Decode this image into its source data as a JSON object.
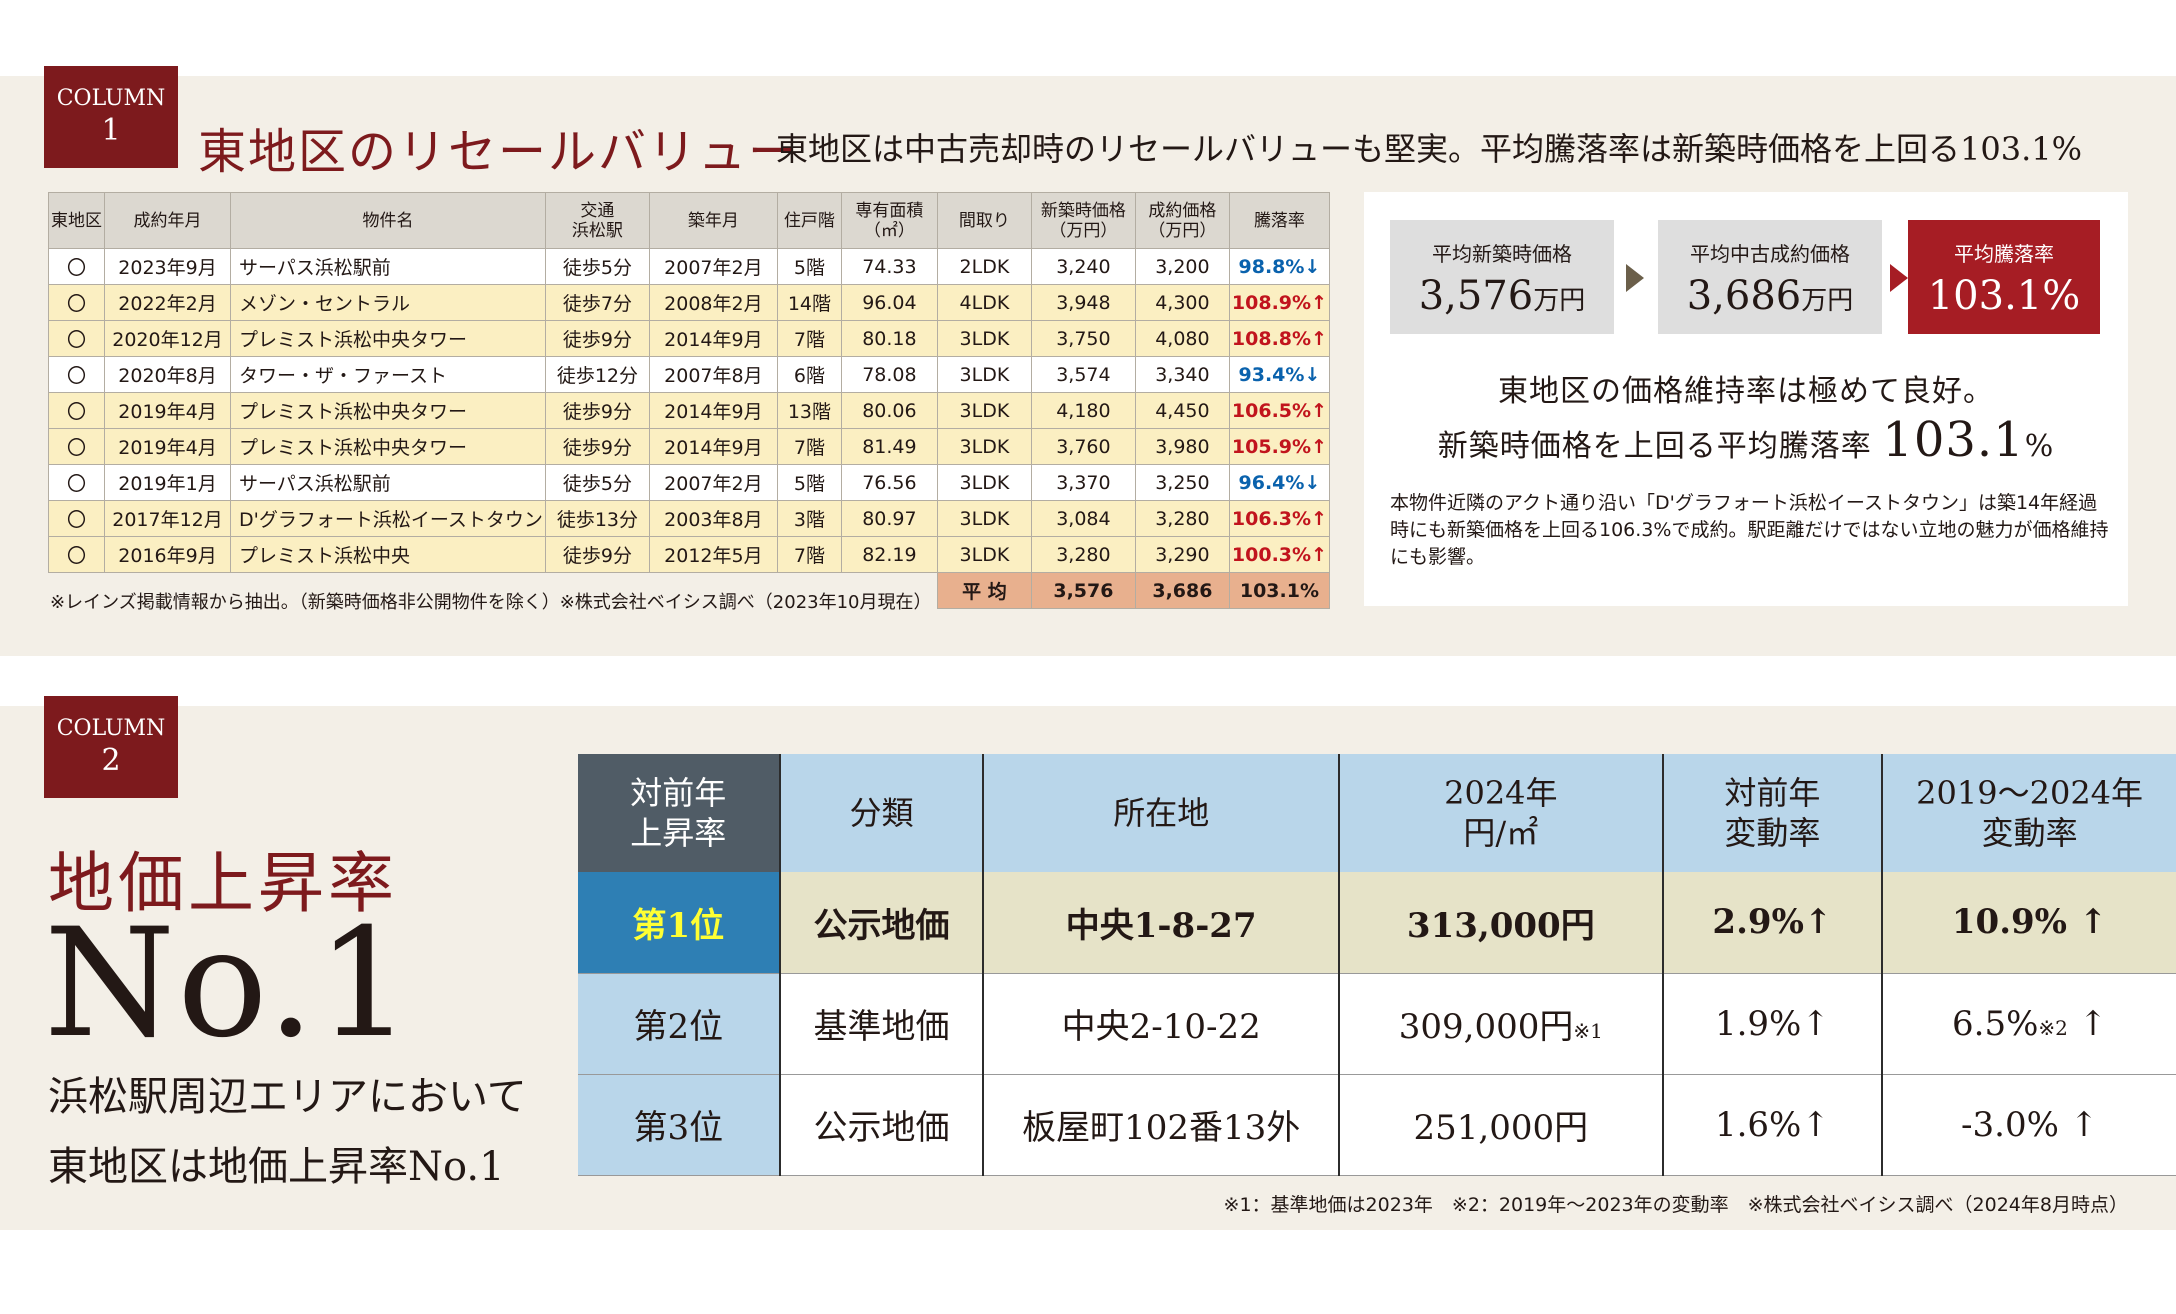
{
  "column1": {
    "badge_word": "COLUMN",
    "badge_num": "1",
    "title": "東地区のリセールバリュー",
    "subtitle": "東地区は中古売却時のリセールバリューも堅実。平均騰落率は新築時価格を上回る103.1%",
    "table": {
      "headers": [
        "東地区",
        "成約年月",
        "物件名",
        "交通\n浜松駅",
        "築年月",
        "住戸階",
        "専有面積\n（㎡）",
        "間取り",
        "新築時価格\n（万円）",
        "成約価格\n（万円）",
        "騰落率"
      ],
      "rows": [
        {
          "mark": "〇",
          "date": "2023年9月",
          "name": "サーパス浜松駅前",
          "walk": "徒歩5分",
          "built": "2007年2月",
          "floor": "5階",
          "area": "74.33",
          "layout": "2LDK",
          "new_price": "3,240",
          "sold_price": "3,200",
          "rate": "98.8%↓",
          "dir": "down"
        },
        {
          "mark": "〇",
          "date": "2022年2月",
          "name": "メゾン・セントラル",
          "walk": "徒歩7分",
          "built": "2008年2月",
          "floor": "14階",
          "area": "96.04",
          "layout": "4LDK",
          "new_price": "3,948",
          "sold_price": "4,300",
          "rate": "108.9%↑",
          "dir": "up"
        },
        {
          "mark": "〇",
          "date": "2020年12月",
          "name": "プレミスト浜松中央タワー",
          "walk": "徒歩9分",
          "built": "2014年9月",
          "floor": "7階",
          "area": "80.18",
          "layout": "3LDK",
          "new_price": "3,750",
          "sold_price": "4,080",
          "rate": "108.8%↑",
          "dir": "up"
        },
        {
          "mark": "〇",
          "date": "2020年8月",
          "name": "タワー・ザ・ファースト",
          "walk": "徒歩12分",
          "built": "2007年8月",
          "floor": "6階",
          "area": "78.08",
          "layout": "3LDK",
          "new_price": "3,574",
          "sold_price": "3,340",
          "rate": "93.4%↓",
          "dir": "down"
        },
        {
          "mark": "〇",
          "date": "2019年4月",
          "name": "プレミスト浜松中央タワー",
          "walk": "徒歩9分",
          "built": "2014年9月",
          "floor": "13階",
          "area": "80.06",
          "layout": "3LDK",
          "new_price": "4,180",
          "sold_price": "4,450",
          "rate": "106.5%↑",
          "dir": "up"
        },
        {
          "mark": "〇",
          "date": "2019年4月",
          "name": "プレミスト浜松中央タワー",
          "walk": "徒歩9分",
          "built": "2014年9月",
          "floor": "7階",
          "area": "81.49",
          "layout": "3LDK",
          "new_price": "3,760",
          "sold_price": "3,980",
          "rate": "105.9%↑",
          "dir": "up"
        },
        {
          "mark": "〇",
          "date": "2019年1月",
          "name": "サーパス浜松駅前",
          "walk": "徒歩5分",
          "built": "2007年2月",
          "floor": "5階",
          "area": "76.56",
          "layout": "3LDK",
          "new_price": "3,370",
          "sold_price": "3,250",
          "rate": "96.4%↓",
          "dir": "down"
        },
        {
          "mark": "〇",
          "date": "2017年12月",
          "name": "D'グラフォート浜松イーストタウン",
          "walk": "徒歩13分",
          "built": "2003年8月",
          "floor": "3階",
          "area": "80.97",
          "layout": "3LDK",
          "new_price": "3,084",
          "sold_price": "3,280",
          "rate": "106.3%↑",
          "dir": "up"
        },
        {
          "mark": "〇",
          "date": "2016年9月",
          "name": "プレミスト浜松中央",
          "walk": "徒歩9分",
          "built": "2012年5月",
          "floor": "7階",
          "area": "82.19",
          "layout": "3LDK",
          "new_price": "3,280",
          "sold_price": "3,290",
          "rate": "100.3%↑",
          "dir": "up"
        }
      ],
      "average": {
        "label": "平 均",
        "new_price": "3,576",
        "sold_price": "3,686",
        "rate": "103.1%"
      }
    },
    "note": "※レインズ掲載情報から抽出。（新築時価格非公開物件を除く）※株式会社ベイシス調べ（2023年10月現在）",
    "panel": {
      "box1": {
        "label": "平均新築時価格",
        "value": "3,576",
        "unit": "万円"
      },
      "box2": {
        "label": "平均中古成約価格",
        "value": "3,686",
        "unit": "万円"
      },
      "box3": {
        "label": "平均騰落率",
        "value": "103.1%"
      },
      "line1": "東地区の価格維持率は極めて良好。",
      "line2_pre": "新築時価格を上回る平均騰落率",
      "line2_num": "103.1",
      "line2_unit": "%",
      "desc": "本物件近隣のアクト通り沿い「D'グラフォート浜松イーストタウン」は築14年経過時にも新築価格を上回る106.3%で成約。駅距離だけではない立地の魅力が価格維持にも影響。"
    }
  },
  "column2": {
    "badge_word": "COLUMN",
    "badge_num": "2",
    "title": "地価上昇率",
    "big": "No.1",
    "desc_line1": "浜松駅周辺エリアにおいて",
    "desc_line2": "東地区は地価上昇率No.1",
    "table": {
      "headers": [
        "対前年\n上昇率",
        "分類",
        "所在地",
        "2024年\n円/㎡",
        "対前年\n変動率",
        "2019〜2024年\n変動率"
      ],
      "rows": [
        {
          "rank": "第1位",
          "type": "公示地価",
          "addr": "中央1-8-27",
          "price": "313,000円",
          "price_note": "",
          "yoy": "2.9%↑",
          "five": "10.9%",
          "five_note": "",
          "arrow": "↑"
        },
        {
          "rank": "第2位",
          "type": "基準地価",
          "addr": "中央2-10-22",
          "price": "309,000円",
          "price_note": "※1",
          "yoy": "1.9%↑",
          "five": "6.5%",
          "five_note": "※2",
          "arrow": "↑"
        },
        {
          "rank": "第3位",
          "type": "公示地価",
          "addr": "板屋町102番13外",
          "price": "251,000円",
          "price_note": "",
          "yoy": "1.6%↑",
          "five": "-3.0%",
          "five_note": "",
          "arrow": "↑"
        }
      ]
    },
    "note": "※1：基準地価は2023年　※2：2019年〜2023年の変動率　※株式会社ベイシス調べ（2024年8月時点）"
  }
}
